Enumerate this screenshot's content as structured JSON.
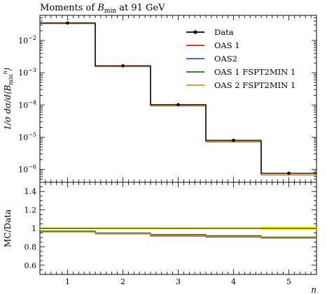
{
  "chart_data": [
    {
      "type": "line",
      "title": "Moments of B_min at 91 GeV",
      "title_parts": {
        "prefix": "Moments of ",
        "var": "B",
        "sub": "min",
        "suffix": " at 91 GeV"
      },
      "ylabel": "1/σ dσ/d⟨B_min^n⟩",
      "ylabel_parts": {
        "a": "1/σ dσ/d⟨B",
        "sub": "min",
        "sup": "n",
        "b": "⟩"
      },
      "xlabel": "n",
      "yscale": "log",
      "xlim": [
        0.5,
        5.5
      ],
      "ylim": [
        4e-07,
        0.06
      ],
      "yticks": [
        1e-06,
        1e-05,
        0.0001,
        0.001,
        0.01
      ],
      "ytick_labels": [
        {
          "base": "10",
          "exp": "−6"
        },
        {
          "base": "10",
          "exp": "−5"
        },
        {
          "base": "10",
          "exp": "−4"
        },
        {
          "base": "10",
          "exp": "−3"
        },
        {
          "base": "10",
          "exp": "−2"
        }
      ],
      "x": [
        1,
        2,
        3,
        4,
        5
      ],
      "bin_edges": [
        0.5,
        1.5,
        2.5,
        3.5,
        4.5,
        5.5
      ],
      "legend_position": "top-right",
      "data": {
        "name": "Data",
        "values": [
          0.0348,
          0.00163,
          0.000102,
          8e-06,
          7.6e-07
        ]
      },
      "series": [
        {
          "name": "OAS 1",
          "color": "#e41a1c",
          "values": [
            0.0335,
            0.00155,
            9.5e-05,
            7.2e-06,
            6.8e-07
          ]
        },
        {
          "name": "OAS2",
          "color": "#1f5fd6",
          "values": [
            0.0335,
            0.00154,
            9.3e-05,
            7.1e-06,
            6.7e-07
          ]
        },
        {
          "name": "OAS 1 FSPT2MIN 1",
          "color": "#137a13",
          "values": [
            0.0336,
            0.00155,
            9.5e-05,
            7.3e-06,
            6.8e-07
          ]
        },
        {
          "name": "OAS 2 FSPT2MIN 1",
          "color": "#f28c18",
          "values": [
            0.0334,
            0.00154,
            9.4e-05,
            7.2e-06,
            6.7e-07
          ]
        }
      ]
    },
    {
      "type": "line",
      "ylabel": "MC/Data",
      "xlabel": "n",
      "xlim": [
        0.5,
        5.5
      ],
      "ylim": [
        0.5,
        1.5
      ],
      "yticks": [
        0.6,
        0.8,
        1.0,
        1.2,
        1.4
      ],
      "ytick_labels": [
        "0.6",
        "0.8",
        "1",
        "1.2",
        "1.4"
      ],
      "xticks": [
        1,
        2,
        3,
        4,
        5
      ],
      "xtick_labels": [
        "1",
        "2",
        "3",
        "4",
        "5"
      ],
      "reference": 1.0,
      "uncertainty_band": {
        "color": "#ffff00",
        "lower": [
          0.99,
          0.99,
          0.99,
          0.99,
          0.98
        ],
        "upper": [
          1.01,
          1.01,
          1.01,
          1.01,
          1.02
        ]
      },
      "series": [
        {
          "name": "OAS 1",
          "color": "#e41a1c",
          "values": [
            0.965,
            0.945,
            0.925,
            0.912,
            0.9
          ]
        },
        {
          "name": "OAS2",
          "color": "#1f5fd6",
          "values": [
            0.962,
            0.94,
            0.915,
            0.905,
            0.893
          ]
        },
        {
          "name": "OAS 1 FSPT2MIN 1",
          "color": "#137a13",
          "values": [
            0.97,
            0.95,
            0.933,
            0.92,
            0.905
          ]
        },
        {
          "name": "OAS 2 FSPT2MIN 1",
          "color": "#f28c18",
          "values": [
            0.96,
            0.942,
            0.92,
            0.91,
            0.895
          ]
        }
      ]
    }
  ]
}
